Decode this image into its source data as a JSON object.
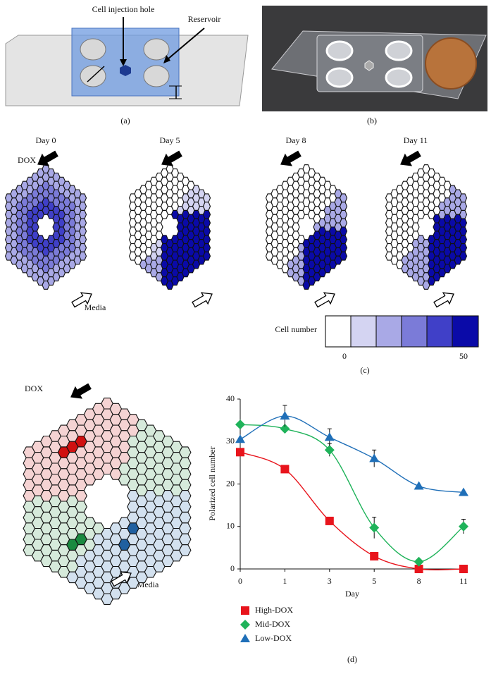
{
  "panels": {
    "a": {
      "label": "(a)",
      "annotations": [
        "Cell injection hole",
        "Reservoir"
      ]
    },
    "b": {
      "label": "(b)"
    },
    "c": {
      "label": "(c)",
      "days": [
        "Day 0",
        "Day 5",
        "Day 8",
        "Day 11"
      ],
      "dox": "DOX",
      "media": "Media",
      "colorbar": {
        "title": "Cell number",
        "ticks": [
          0,
          50
        ]
      }
    },
    "d": {
      "label": "(d)",
      "dox": "DOX",
      "media": "Media"
    }
  },
  "chart_data": {
    "type": "line",
    "xlabel": "Day",
    "ylabel": "Polarized cell number",
    "categories": [
      "0",
      "1",
      "3",
      "5",
      "8",
      "11"
    ],
    "ylim": [
      0,
      40
    ],
    "yticks": [
      0,
      10,
      20,
      30,
      40
    ],
    "smooth": true,
    "series": [
      {
        "name": "High-DOX",
        "color": "#e8141c",
        "marker": "square",
        "values": [
          27.5,
          23.5,
          11.3,
          3,
          0,
          0
        ],
        "errors": [
          null,
          null,
          null,
          null,
          null,
          null
        ]
      },
      {
        "name": "Mid-DOX",
        "color": "#1fb35a",
        "marker": "diamond",
        "values": [
          34,
          33,
          28,
          9.7,
          1.7,
          10
        ],
        "errors": [
          null,
          null,
          1.5,
          2.5,
          null,
          1.7
        ]
      },
      {
        "name": "Low-DOX",
        "color": "#1f6fb8",
        "marker": "triangle",
        "values": [
          30.5,
          36,
          31,
          26,
          19.5,
          18
        ],
        "errors": [
          null,
          2.5,
          2,
          2,
          null,
          null
        ]
      }
    ]
  }
}
